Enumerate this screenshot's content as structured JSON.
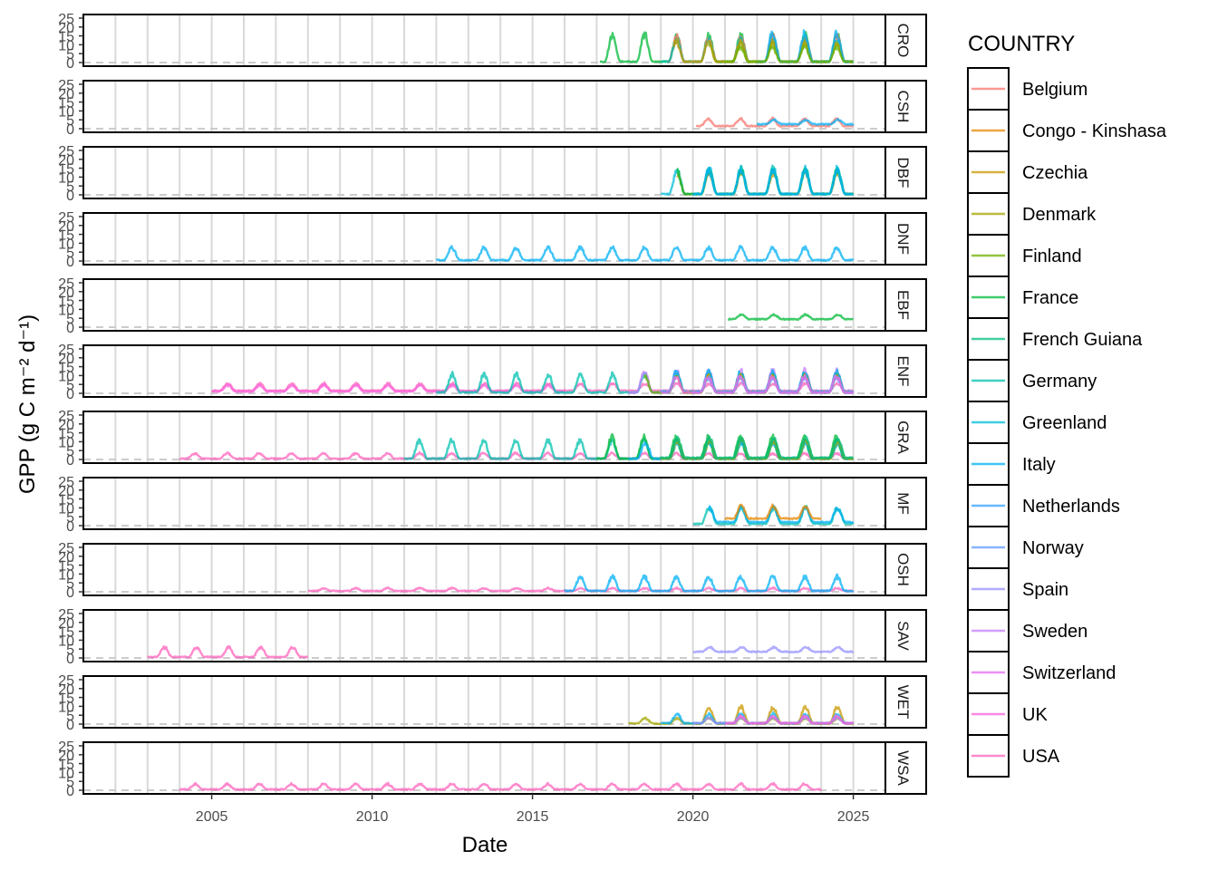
{
  "chart_data": {
    "type": "line",
    "xlabel": "Date",
    "ylabel": "GPP (g C m⁻² d⁻¹)",
    "x_ticks": [
      "2005",
      "2010",
      "2015",
      "2020",
      "2025"
    ],
    "x_range": [
      "2001-01-01",
      "2026-01-01"
    ],
    "y_ticks": [
      0,
      5,
      10,
      15,
      20,
      25
    ],
    "ylim": [
      0,
      25
    ],
    "grid": true,
    "reference_line": {
      "y": 0,
      "style": "dashed"
    },
    "legend": {
      "title": "COUNTRY",
      "position": "right",
      "entries": [
        {
          "name": "Belgium",
          "color": "#F8766D"
        },
        {
          "name": "Congo - Kinshasa",
          "color": "#E58700"
        },
        {
          "name": "Czechia",
          "color": "#C99800"
        },
        {
          "name": "Denmark",
          "color": "#A3A500"
        },
        {
          "name": "Finland",
          "color": "#6BB100"
        },
        {
          "name": "France",
          "color": "#00BA38"
        },
        {
          "name": "French Guiana",
          "color": "#00BF7D"
        },
        {
          "name": "Germany",
          "color": "#00C0AF"
        },
        {
          "name": "Greenland",
          "color": "#00BCD8"
        },
        {
          "name": "Italy",
          "color": "#00B0F6"
        },
        {
          "name": "Netherlands",
          "color": "#35A2FF"
        },
        {
          "name": "Norway",
          "color": "#619CFF"
        },
        {
          "name": "Spain",
          "color": "#9590FF"
        },
        {
          "name": "Sweden",
          "color": "#C77CFF"
        },
        {
          "name": "Switzerland",
          "color": "#E76BF3"
        },
        {
          "name": "UK",
          "color": "#FA62DB"
        },
        {
          "name": "USA",
          "color": "#FF62BC"
        }
      ]
    },
    "panels": [
      {
        "label": "CRO",
        "series": [
          {
            "country": "France",
            "start": 2017.1,
            "end": 2025.0,
            "base": 0.5,
            "amp": 15
          },
          {
            "country": "Belgium",
            "start": 2019.2,
            "end": 2025.0,
            "base": 0.5,
            "amp": 14
          },
          {
            "country": "Germany",
            "start": 2019.0,
            "end": 2025.0,
            "base": 0.5,
            "amp": 12
          },
          {
            "country": "Czechia",
            "start": 2019.4,
            "end": 2025.0,
            "base": 0.5,
            "amp": 11
          },
          {
            "country": "Denmark",
            "start": 2020.5,
            "end": 2025.0,
            "base": 0.5,
            "amp": 10
          },
          {
            "country": "Italy",
            "start": 2022.0,
            "end": 2025.0,
            "base": 0.5,
            "amp": 16
          },
          {
            "country": "Finland",
            "start": 2021.0,
            "end": 2025.0,
            "base": 0.5,
            "amp": 8
          }
        ]
      },
      {
        "label": "CSH",
        "series": [
          {
            "country": "Belgium",
            "start": 2020.1,
            "end": 2025.0,
            "base": 1.5,
            "amp": 4
          },
          {
            "country": "Italy",
            "start": 2022.0,
            "end": 2025.0,
            "base": 2.5,
            "amp": 2.5
          }
        ]
      },
      {
        "label": "DBF",
        "series": [
          {
            "country": "Greenland",
            "start": 2019.0,
            "end": 2025.0,
            "base": 0.5,
            "amp": 14
          },
          {
            "country": "Czechia",
            "start": 2019.5,
            "end": 2025.0,
            "base": 0.5,
            "amp": 12
          },
          {
            "country": "France",
            "start": 2019.5,
            "end": 2025.0,
            "base": 0.5,
            "amp": 13
          },
          {
            "country": "Germany",
            "start": 2020.0,
            "end": 2025.0,
            "base": 0.5,
            "amp": 14
          },
          {
            "country": "Italy",
            "start": 2020.0,
            "end": 2025.0,
            "base": 0.5,
            "amp": 13
          }
        ]
      },
      {
        "label": "DNF",
        "series": [
          {
            "country": "Italy",
            "start": 2012.0,
            "end": 2025.0,
            "base": 0.5,
            "amp": 7
          }
        ]
      },
      {
        "label": "EBF",
        "series": [
          {
            "country": "France",
            "start": 2021.1,
            "end": 2025.0,
            "base": 4.5,
            "amp": 2.5
          }
        ]
      },
      {
        "label": "ENF",
        "series": [
          {
            "country": "USA",
            "start": 2005.0,
            "end": 2025.0,
            "base": 1.5,
            "amp": 4
          },
          {
            "country": "UK",
            "start": 2005.0,
            "end": 2016.0,
            "base": 1.0,
            "amp": 3.5
          },
          {
            "country": "Germany",
            "start": 2012.0,
            "end": 2025.0,
            "base": 0.5,
            "amp": 10
          },
          {
            "country": "Sweden",
            "start": 2018.0,
            "end": 2025.0,
            "base": 0.5,
            "amp": 12
          },
          {
            "country": "Finland",
            "start": 2018.5,
            "end": 2025.0,
            "base": 0.5,
            "amp": 10
          },
          {
            "country": "Italy",
            "start": 2019.0,
            "end": 2025.0,
            "base": 1.0,
            "amp": 11
          },
          {
            "country": "Czechia",
            "start": 2019.5,
            "end": 2025.0,
            "base": 0.5,
            "amp": 9
          },
          {
            "country": "Norway",
            "start": 2020.0,
            "end": 2025.0,
            "base": 0.5,
            "amp": 8
          },
          {
            "country": "Switzerland",
            "start": 2019.0,
            "end": 2025.0,
            "base": 0.5,
            "amp": 9
          }
        ]
      },
      {
        "label": "GRA",
        "series": [
          {
            "country": "USA",
            "start": 2004.0,
            "end": 2025.0,
            "base": 0.5,
            "amp": 3
          },
          {
            "country": "Germany",
            "start": 2011.0,
            "end": 2025.0,
            "base": 0.5,
            "amp": 10
          },
          {
            "country": "France",
            "start": 2017.0,
            "end": 2025.0,
            "base": 0.5,
            "amp": 12
          },
          {
            "country": "Italy",
            "start": 2018.0,
            "end": 2025.0,
            "base": 0.5,
            "amp": 9
          },
          {
            "country": "Denmark",
            "start": 2019.0,
            "end": 2025.0,
            "base": 0.5,
            "amp": 10
          },
          {
            "country": "French Guiana",
            "start": 2019.0,
            "end": 2025.0,
            "base": 1.0,
            "amp": 11
          }
        ]
      },
      {
        "label": "MF",
        "series": [
          {
            "country": "Germany",
            "start": 2020.0,
            "end": 2025.0,
            "base": 1.0,
            "amp": 9
          },
          {
            "country": "Italy",
            "start": 2020.5,
            "end": 2025.0,
            "base": 2.0,
            "amp": 8
          },
          {
            "country": "Congo - Kinshasa",
            "start": 2021.0,
            "end": 2024.0,
            "base": 4.0,
            "amp": 7
          }
        ]
      },
      {
        "label": "OSH",
        "series": [
          {
            "country": "USA",
            "start": 2008.0,
            "end": 2025.0,
            "base": 0.5,
            "amp": 1.5
          },
          {
            "country": "Italy",
            "start": 2016.0,
            "end": 2025.0,
            "base": 0.5,
            "amp": 8
          }
        ]
      },
      {
        "label": "SAV",
        "series": [
          {
            "country": "USA",
            "start": 2003.0,
            "end": 2008.0,
            "base": 0.5,
            "amp": 5.5
          },
          {
            "country": "Spain",
            "start": 2020.0,
            "end": 2025.0,
            "base": 3.5,
            "amp": 2.5
          }
        ]
      },
      {
        "label": "WET",
        "series": [
          {
            "country": "Denmark",
            "start": 2018.0,
            "end": 2025.0,
            "base": 0.3,
            "amp": 3
          },
          {
            "country": "Czechia",
            "start": 2020.0,
            "end": 2025.0,
            "base": 0.5,
            "amp": 9
          },
          {
            "country": "Italy",
            "start": 2019.0,
            "end": 2025.0,
            "base": 0.5,
            "amp": 5
          },
          {
            "country": "Spain",
            "start": 2020.0,
            "end": 2025.0,
            "base": 0.5,
            "amp": 3
          },
          {
            "country": "UK",
            "start": 2021.0,
            "end": 2025.0,
            "base": 0.5,
            "amp": 4
          }
        ]
      },
      {
        "label": "WSA",
        "series": [
          {
            "country": "USA",
            "start": 2004.0,
            "end": 2024.0,
            "base": 0.5,
            "amp": 3
          }
        ]
      }
    ]
  }
}
